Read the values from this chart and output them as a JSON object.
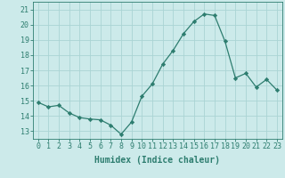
{
  "x": [
    0,
    1,
    2,
    3,
    4,
    5,
    6,
    7,
    8,
    9,
    10,
    11,
    12,
    13,
    14,
    15,
    16,
    17,
    18,
    19,
    20,
    21,
    22,
    23
  ],
  "y": [
    14.9,
    14.6,
    14.7,
    14.2,
    13.9,
    13.8,
    13.75,
    13.4,
    12.8,
    13.6,
    15.3,
    16.1,
    17.4,
    18.3,
    19.4,
    20.2,
    20.7,
    20.6,
    18.9,
    16.5,
    16.8,
    15.9,
    16.4,
    15.7
  ],
  "line_color": "#2d7d6f",
  "marker": "D",
  "marker_size": 2.2,
  "bg_color": "#cceaea",
  "grid_color": "#aad4d4",
  "xlabel": "Humidex (Indice chaleur)",
  "ylim": [
    12.5,
    21.5
  ],
  "xlim": [
    -0.5,
    23.5
  ],
  "yticks": [
    13,
    14,
    15,
    16,
    17,
    18,
    19,
    20,
    21
  ],
  "xticks": [
    0,
    1,
    2,
    3,
    4,
    5,
    6,
    7,
    8,
    9,
    10,
    11,
    12,
    13,
    14,
    15,
    16,
    17,
    18,
    19,
    20,
    21,
    22,
    23
  ],
  "axis_color": "#2d7d6f",
  "tick_color": "#2d7d6f",
  "label_color": "#2d7d6f",
  "font_size_label": 7,
  "font_size_tick": 6
}
